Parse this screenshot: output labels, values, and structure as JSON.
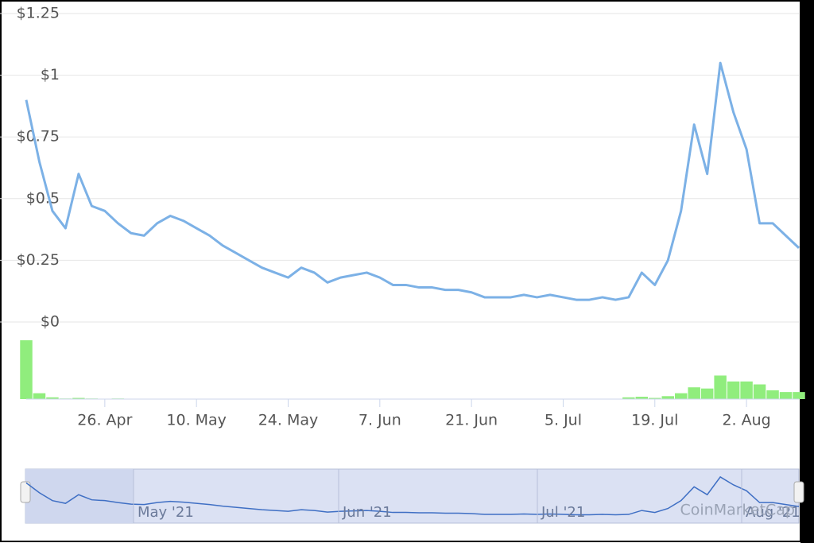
{
  "chart_data": {
    "type": "line",
    "categories": [
      null,
      null,
      null,
      null,
      null,
      null,
      "26. Apr",
      null,
      null,
      null,
      null,
      null,
      null,
      "10. May",
      null,
      null,
      null,
      null,
      null,
      null,
      "24. May",
      null,
      null,
      null,
      null,
      null,
      null,
      "7. Jun",
      null,
      null,
      null,
      null,
      null,
      null,
      "21. Jun",
      null,
      null,
      null,
      null,
      null,
      null,
      "5. Jul",
      null,
      null,
      null,
      null,
      null,
      null,
      "19. Jul",
      null,
      null,
      null,
      null,
      null,
      null,
      "2. Aug",
      null,
      null,
      null,
      null
    ],
    "series": [
      {
        "color": "#7cb1e6",
        "values": [
          0.9,
          0.65,
          0.45,
          0.38,
          0.6,
          0.47,
          0.45,
          0.4,
          0.36,
          0.35,
          0.4,
          0.43,
          0.41,
          0.38,
          0.35,
          0.31,
          0.28,
          0.25,
          0.22,
          0.2,
          0.18,
          0.22,
          0.2,
          0.16,
          0.18,
          0.19,
          0.2,
          0.18,
          0.15,
          0.15,
          0.14,
          0.14,
          0.13,
          0.13,
          0.12,
          0.1,
          0.1,
          0.1,
          0.11,
          0.1,
          0.11,
          0.1,
          0.09,
          0.09,
          0.1,
          0.09,
          0.1,
          0.2,
          0.15,
          0.25,
          0.45,
          0.8,
          0.6,
          1.05,
          0.85,
          0.7,
          0.4,
          0.4,
          0.35,
          0.3
        ]
      }
    ],
    "volume": {
      "color": "#90ed7d",
      "values": [
        100,
        10,
        3,
        1,
        2,
        1,
        0,
        1,
        0,
        0,
        0,
        0,
        0,
        0,
        0,
        0,
        0,
        0,
        0,
        0,
        0,
        0,
        0,
        0,
        0,
        0,
        0,
        0,
        0,
        0,
        0,
        0,
        0,
        0,
        0,
        0,
        0,
        0,
        0,
        0,
        0,
        0,
        0,
        0,
        0,
        0,
        3,
        4,
        2,
        5,
        10,
        20,
        18,
        40,
        30,
        30,
        25,
        15,
        12,
        12
      ]
    },
    "ylim": [
      0,
      1.25
    ],
    "yticks": [
      {
        "value": 0,
        "label": "$0"
      },
      {
        "value": 0.25,
        "label": "$0.25"
      },
      {
        "value": 0.5,
        "label": "$0.5"
      },
      {
        "value": 0.75,
        "label": "$0.75"
      },
      {
        "value": 1,
        "label": "$1"
      },
      {
        "value": 1.25,
        "label": "$1.25"
      }
    ],
    "grid": true,
    "navigator_labels": [
      "May '21",
      "Jun '21",
      "Jul '21",
      "Aug '21"
    ],
    "watermark": "CoinMarketCap"
  }
}
